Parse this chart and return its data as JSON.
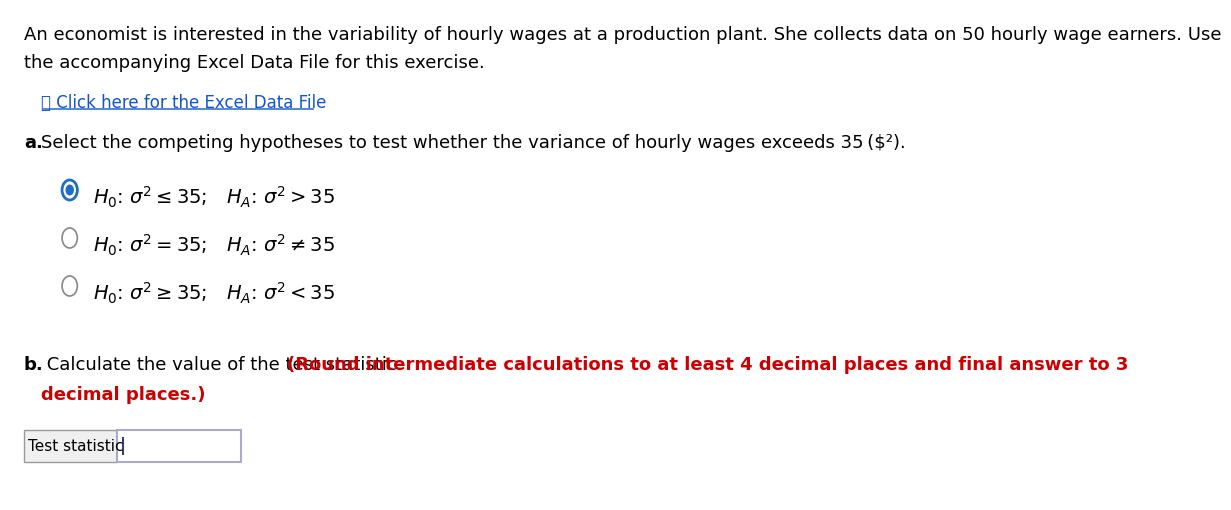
{
  "bg_color": "#ffffff",
  "intro_line1": "An economist is interested in the variability of hourly wages at a production plant. She collects data on 50 hourly wage earners. Use",
  "intro_line2": "the accompanying Excel Data File for this exercise.",
  "link_text": "⎙ Click here for the Excel Data File",
  "part_a_label": "a.",
  "part_b_label": "b.",
  "part_b_normal": " Calculate the value of the test statistic. ",
  "part_b_red": "(Round intermediate calculations to at least 4 decimal places and final answer to 3",
  "part_b_red2": "decimal places.)",
  "hypotheses_math": [
    "$H_0$: $\\sigma^2 \\leq 35$;   $H_A$: $\\sigma^2 > 35$",
    "$H_0$: $\\sigma^2 = 35$;   $H_A$: $\\sigma^2 \\neq 35$",
    "$H_0$: $\\sigma^2 \\geq 35$;   $H_A$: $\\sigma^2 < 35$"
  ],
  "hypotheses_selected": [
    true,
    false,
    false
  ],
  "input_label": "Test statistic",
  "text_color": "#000000",
  "link_color": "#1155CC",
  "red_color": "#CC0000",
  "radio_selected_color": "#1E6FBF",
  "radio_unselected_color": "#888888",
  "input_border_color": "#aaaacc",
  "font_size_intro": 13,
  "font_size_link": 12,
  "font_size_part": 13,
  "font_size_hyp": 13
}
